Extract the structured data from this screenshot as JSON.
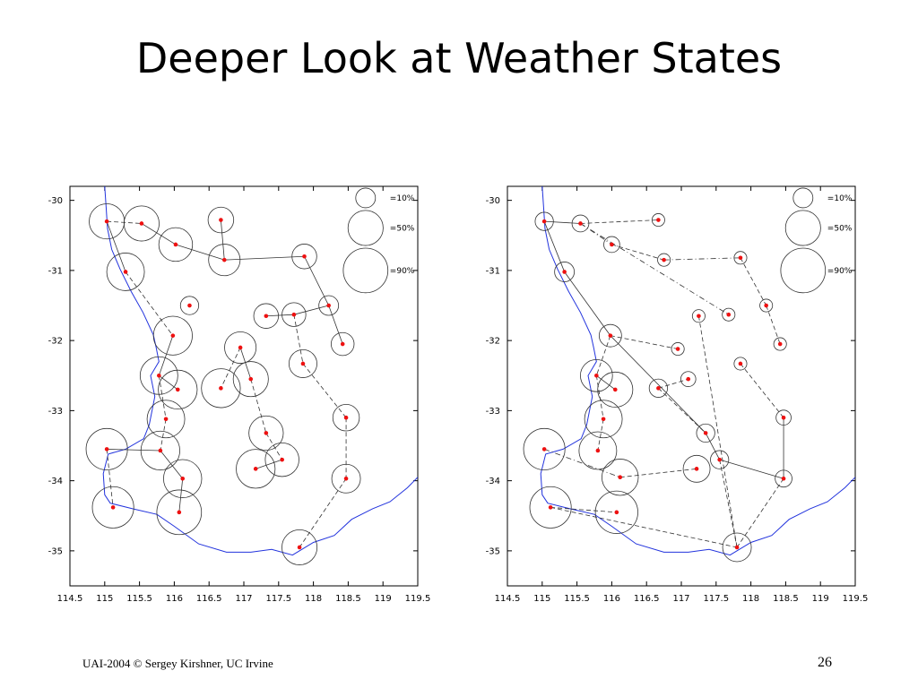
{
  "slide": {
    "title": "Deeper Look at Weather States",
    "footer": "UAI-2004 © Sergey Kirshner, UC Irvine",
    "page_number": "26"
  },
  "colors": {
    "coastline": "#2233dd",
    "station": "#ee1111",
    "link": "#333333",
    "circle": "#333333"
  },
  "map_axes": {
    "x_ticks": [
      "114.5",
      "115",
      "115.5",
      "116",
      "116.5",
      "117",
      "117.5",
      "118",
      "118.5",
      "119",
      "119.5"
    ],
    "y_ticks": [
      "-30",
      "-31",
      "-32",
      "-33",
      "-34",
      "-35"
    ],
    "xlim": [
      114.5,
      119.5
    ],
    "ylim": [
      -35.5,
      -29.8
    ]
  },
  "legend": [
    {
      "label": "=10%",
      "probability": 0.1
    },
    {
      "label": "=50%",
      "probability": 0.5
    },
    {
      "label": "=90%",
      "probability": 0.9
    }
  ],
  "coastline": [
    [
      115.0,
      -29.8
    ],
    [
      115.02,
      -30.1
    ],
    [
      115.04,
      -30.4
    ],
    [
      115.1,
      -30.7
    ],
    [
      115.22,
      -30.98
    ],
    [
      115.38,
      -31.3
    ],
    [
      115.55,
      -31.6
    ],
    [
      115.7,
      -31.92
    ],
    [
      115.74,
      -32.1
    ],
    [
      115.78,
      -32.3
    ],
    [
      115.66,
      -32.5
    ],
    [
      115.72,
      -32.8
    ],
    [
      115.64,
      -33.2
    ],
    [
      115.56,
      -33.4
    ],
    [
      115.3,
      -33.55
    ],
    [
      115.05,
      -33.62
    ],
    [
      114.98,
      -33.9
    ],
    [
      115.0,
      -34.2
    ],
    [
      115.08,
      -34.32
    ],
    [
      115.4,
      -34.4
    ],
    [
      115.75,
      -34.48
    ],
    [
      116.0,
      -34.65
    ],
    [
      116.35,
      -34.9
    ],
    [
      116.75,
      -35.02
    ],
    [
      117.1,
      -35.02
    ],
    [
      117.4,
      -34.98
    ],
    [
      117.7,
      -35.06
    ],
    [
      118.0,
      -34.88
    ],
    [
      118.3,
      -34.78
    ],
    [
      118.55,
      -34.55
    ],
    [
      118.85,
      -34.4
    ],
    [
      119.1,
      -34.3
    ],
    [
      119.35,
      -34.1
    ],
    [
      119.5,
      -33.95
    ]
  ],
  "maps": [
    {
      "id": "left-map",
      "stations": [
        {
          "lon": 115.03,
          "lat": -30.3,
          "p": 0.5
        },
        {
          "lon": 115.53,
          "lat": -30.33,
          "p": 0.5
        },
        {
          "lon": 116.02,
          "lat": -30.63,
          "p": 0.45
        },
        {
          "lon": 116.67,
          "lat": -30.28,
          "p": 0.22
        },
        {
          "lon": 116.72,
          "lat": -30.85,
          "p": 0.38
        },
        {
          "lon": 117.87,
          "lat": -30.8,
          "p": 0.2
        },
        {
          "lon": 115.3,
          "lat": -31.02,
          "p": 0.6
        },
        {
          "lon": 116.22,
          "lat": -31.5,
          "p": 0.08
        },
        {
          "lon": 117.32,
          "lat": -31.65,
          "p": 0.2
        },
        {
          "lon": 117.72,
          "lat": -31.63,
          "p": 0.18
        },
        {
          "lon": 118.22,
          "lat": -31.5,
          "p": 0.1
        },
        {
          "lon": 115.98,
          "lat": -31.93,
          "p": 0.65
        },
        {
          "lon": 116.95,
          "lat": -32.1,
          "p": 0.38
        },
        {
          "lon": 118.42,
          "lat": -32.05,
          "p": 0.16
        },
        {
          "lon": 117.85,
          "lat": -32.33,
          "p": 0.28
        },
        {
          "lon": 115.78,
          "lat": -32.5,
          "p": 0.6
        },
        {
          "lon": 116.05,
          "lat": -32.7,
          "p": 0.65
        },
        {
          "lon": 116.67,
          "lat": -32.68,
          "p": 0.65
        },
        {
          "lon": 117.1,
          "lat": -32.55,
          "p": 0.5
        },
        {
          "lon": 115.88,
          "lat": -33.12,
          "p": 0.6
        },
        {
          "lon": 118.47,
          "lat": -33.1,
          "p": 0.24
        },
        {
          "lon": 117.32,
          "lat": -33.32,
          "p": 0.48
        },
        {
          "lon": 115.03,
          "lat": -33.55,
          "p": 0.75
        },
        {
          "lon": 115.8,
          "lat": -33.57,
          "p": 0.65
        },
        {
          "lon": 117.55,
          "lat": -33.7,
          "p": 0.45
        },
        {
          "lon": 117.17,
          "lat": -33.83,
          "p": 0.65
        },
        {
          "lon": 116.12,
          "lat": -33.97,
          "p": 0.62
        },
        {
          "lon": 118.47,
          "lat": -33.97,
          "p": 0.3
        },
        {
          "lon": 115.12,
          "lat": -34.38,
          "p": 0.75
        },
        {
          "lon": 116.07,
          "lat": -34.45,
          "p": 0.9
        },
        {
          "lon": 117.8,
          "lat": -34.95,
          "p": 0.5
        }
      ],
      "links": [
        {
          "from": 0,
          "to": 1,
          "style": "dashed"
        },
        {
          "from": 1,
          "to": 2,
          "style": "solid"
        },
        {
          "from": 2,
          "to": 4,
          "style": "solid"
        },
        {
          "from": 3,
          "to": 4,
          "style": "solid"
        },
        {
          "from": 4,
          "to": 5,
          "style": "solid"
        },
        {
          "from": 5,
          "to": 10,
          "style": "solid"
        },
        {
          "from": 10,
          "to": 9,
          "style": "solid"
        },
        {
          "from": 9,
          "to": 8,
          "style": "solid"
        },
        {
          "from": 10,
          "to": 13,
          "style": "solid"
        },
        {
          "from": 9,
          "to": 14,
          "style": "dashed"
        },
        {
          "from": 14,
          "to": 20,
          "style": "dashed"
        },
        {
          "from": 20,
          "to": 27,
          "style": "dashed"
        },
        {
          "from": 27,
          "to": 30,
          "style": "dashed"
        },
        {
          "from": 0,
          "to": 6,
          "style": "solid"
        },
        {
          "from": 6,
          "to": 11,
          "style": "dashed"
        },
        {
          "from": 11,
          "to": 15,
          "style": "solid"
        },
        {
          "from": 15,
          "to": 16,
          "style": "solid"
        },
        {
          "from": 15,
          "to": 19,
          "style": "dashed"
        },
        {
          "from": 19,
          "to": 23,
          "style": "dashed"
        },
        {
          "from": 23,
          "to": 22,
          "style": "solid"
        },
        {
          "from": 22,
          "to": 28,
          "style": "dashed"
        },
        {
          "from": 23,
          "to": 26,
          "style": "solid"
        },
        {
          "from": 26,
          "to": 29,
          "style": "solid"
        },
        {
          "from": 12,
          "to": 17,
          "style": "dashed"
        },
        {
          "from": 12,
          "to": 18,
          "style": "solid"
        },
        {
          "from": 18,
          "to": 21,
          "style": "dashed"
        },
        {
          "from": 21,
          "to": 24,
          "style": "dashed"
        },
        {
          "from": 24,
          "to": 25,
          "style": "solid"
        }
      ]
    },
    {
      "id": "right-map",
      "stations": [
        {
          "lon": 115.03,
          "lat": -30.3,
          "p": 0.08
        },
        {
          "lon": 115.55,
          "lat": -30.33,
          "p": 0.06
        },
        {
          "lon": 116.67,
          "lat": -30.28,
          "p": 0.02
        },
        {
          "lon": 116.0,
          "lat": -30.63,
          "p": 0.05
        },
        {
          "lon": 116.75,
          "lat": -30.85,
          "p": 0.02
        },
        {
          "lon": 117.85,
          "lat": -30.82,
          "p": 0.02
        },
        {
          "lon": 115.32,
          "lat": -31.02,
          "p": 0.1
        },
        {
          "lon": 118.22,
          "lat": -31.5,
          "p": 0.02
        },
        {
          "lon": 117.25,
          "lat": -31.65,
          "p": 0.02
        },
        {
          "lon": 117.68,
          "lat": -31.63,
          "p": 0.02
        },
        {
          "lon": 115.98,
          "lat": -31.93,
          "p": 0.15
        },
        {
          "lon": 116.95,
          "lat": -32.12,
          "p": 0.02
        },
        {
          "lon": 118.42,
          "lat": -32.05,
          "p": 0.02
        },
        {
          "lon": 117.85,
          "lat": -32.33,
          "p": 0.02
        },
        {
          "lon": 115.78,
          "lat": -32.5,
          "p": 0.4
        },
        {
          "lon": 116.05,
          "lat": -32.7,
          "p": 0.5
        },
        {
          "lon": 116.67,
          "lat": -32.68,
          "p": 0.08
        },
        {
          "lon": 117.1,
          "lat": -32.55,
          "p": 0.04
        },
        {
          "lon": 115.88,
          "lat": -33.12,
          "p": 0.6
        },
        {
          "lon": 118.47,
          "lat": -33.1,
          "p": 0.04
        },
        {
          "lon": 117.35,
          "lat": -33.32,
          "p": 0.08
        },
        {
          "lon": 115.03,
          "lat": -33.55,
          "p": 0.75
        },
        {
          "lon": 115.8,
          "lat": -33.57,
          "p": 0.6
        },
        {
          "lon": 117.55,
          "lat": -33.7,
          "p": 0.08
        },
        {
          "lon": 117.22,
          "lat": -33.83,
          "p": 0.25
        },
        {
          "lon": 116.12,
          "lat": -33.95,
          "p": 0.55
        },
        {
          "lon": 118.47,
          "lat": -33.97,
          "p": 0.06
        },
        {
          "lon": 115.12,
          "lat": -34.38,
          "p": 0.75
        },
        {
          "lon": 116.07,
          "lat": -34.45,
          "p": 0.8
        },
        {
          "lon": 117.8,
          "lat": -34.95,
          "p": 0.3
        }
      ],
      "links": [
        {
          "from": 0,
          "to": 1,
          "style": "solid"
        },
        {
          "from": 1,
          "to": 2,
          "style": "dashed"
        },
        {
          "from": 1,
          "to": 3,
          "style": "dashdot"
        },
        {
          "from": 3,
          "to": 4,
          "style": "dashed"
        },
        {
          "from": 4,
          "to": 5,
          "style": "dashdot"
        },
        {
          "from": 5,
          "to": 7,
          "style": "dashed"
        },
        {
          "from": 7,
          "to": 12,
          "style": "dashed"
        },
        {
          "from": 1,
          "to": 9,
          "style": "dashdot"
        },
        {
          "from": 0,
          "to": 6,
          "style": "solid"
        },
        {
          "from": 6,
          "to": 10,
          "style": "solid"
        },
        {
          "from": 10,
          "to": 11,
          "style": "dashed"
        },
        {
          "from": 10,
          "to": 14,
          "style": "dashed"
        },
        {
          "from": 14,
          "to": 15,
          "style": "solid"
        },
        {
          "from": 10,
          "to": 20,
          "style": "solid"
        },
        {
          "from": 16,
          "to": 17,
          "style": "dashed"
        },
        {
          "from": 16,
          "to": 20,
          "style": "dashed"
        },
        {
          "from": 20,
          "to": 23,
          "style": "solid"
        },
        {
          "from": 23,
          "to": 26,
          "style": "solid"
        },
        {
          "from": 19,
          "to": 26,
          "style": "solid"
        },
        {
          "from": 13,
          "to": 19,
          "style": "dashed"
        },
        {
          "from": 8,
          "to": 29,
          "style": "dashed"
        },
        {
          "from": 23,
          "to": 29,
          "style": "dashed"
        },
        {
          "from": 26,
          "to": 29,
          "style": "dashed"
        },
        {
          "from": 14,
          "to": 18,
          "style": "dashed"
        },
        {
          "from": 18,
          "to": 22,
          "style": "dashed"
        },
        {
          "from": 21,
          "to": 25,
          "style": "dashdot"
        },
        {
          "from": 25,
          "to": 24,
          "style": "dashed"
        },
        {
          "from": 27,
          "to": 28,
          "style": "dashed"
        },
        {
          "from": 27,
          "to": 29,
          "style": "dashed"
        }
      ]
    }
  ]
}
